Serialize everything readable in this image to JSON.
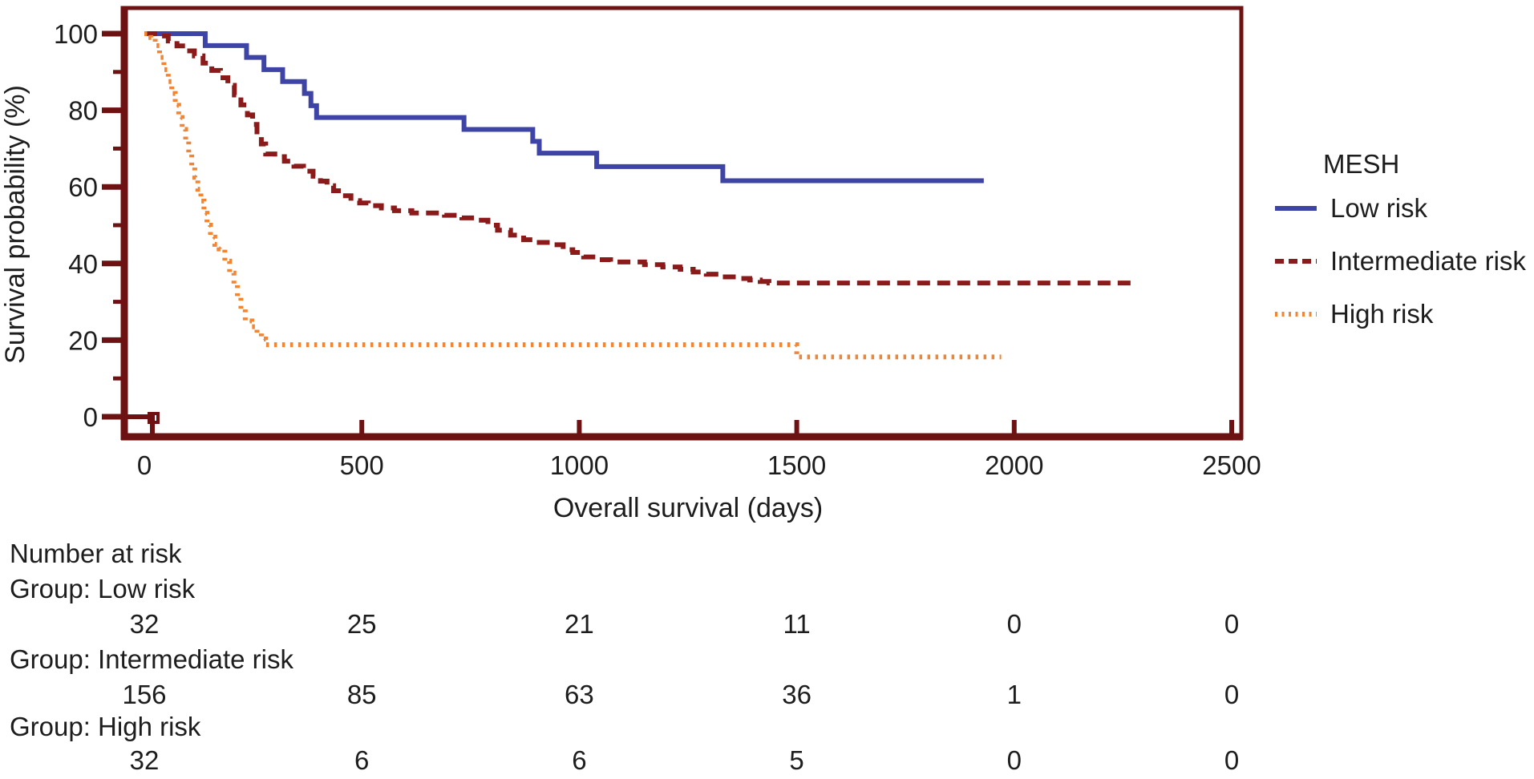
{
  "style": {
    "frame_color": "#6e1112",
    "text_color": "#1d1d1d",
    "background": "#ffffff"
  },
  "chart_data": {
    "type": "line",
    "subtype": "kaplan-meier-step-survival",
    "title": "",
    "xlabel": "Overall survival (days)",
    "ylabel": "Survival probability (%)",
    "xlim": [
      0,
      2500
    ],
    "ylim": [
      0,
      100
    ],
    "x_ticks": [
      0,
      500,
      1000,
      1500,
      2000,
      2500
    ],
    "y_ticks": [
      0,
      20,
      40,
      60,
      80,
      100
    ],
    "y_minor_ticks": [
      10,
      30,
      50,
      70,
      90
    ],
    "grid": false,
    "legend_title": "MESH",
    "legend_position": "right",
    "series": [
      {
        "name": "Low risk",
        "color": "#3e43a6",
        "line_style": "solid",
        "end_day": 1930,
        "points": [
          [
            0,
            100
          ],
          [
            140,
            96.9
          ],
          [
            235,
            93.8
          ],
          [
            275,
            90.6
          ],
          [
            318,
            87.5
          ],
          [
            368,
            84.4
          ],
          [
            383,
            81.2
          ],
          [
            396,
            78.1
          ],
          [
            735,
            75.0
          ],
          [
            893,
            71.9
          ],
          [
            908,
            68.8
          ],
          [
            1040,
            65.3
          ],
          [
            1330,
            61.6
          ]
        ]
      },
      {
        "name": "Intermediate risk",
        "color": "#8b1a1a",
        "line_style": "dashed",
        "end_day": 2280,
        "points": [
          [
            0,
            100
          ],
          [
            30,
            99.4
          ],
          [
            55,
            98.1
          ],
          [
            75,
            96.8
          ],
          [
            95,
            95.5
          ],
          [
            115,
            94.2
          ],
          [
            135,
            92.3
          ],
          [
            155,
            90.4
          ],
          [
            175,
            88.5
          ],
          [
            192,
            86.5
          ],
          [
            207,
            84.0
          ],
          [
            222,
            81.4
          ],
          [
            237,
            78.8
          ],
          [
            249,
            76.3
          ],
          [
            259,
            73.7
          ],
          [
            269,
            71.2
          ],
          [
            279,
            68.6
          ],
          [
            300,
            67.9
          ],
          [
            322,
            66.7
          ],
          [
            344,
            65.4
          ],
          [
            366,
            64.1
          ],
          [
            388,
            62.8
          ],
          [
            405,
            61.5
          ],
          [
            420,
            60.3
          ],
          [
            435,
            59.0
          ],
          [
            455,
            57.7
          ],
          [
            475,
            56.4
          ],
          [
            495,
            55.8
          ],
          [
            515,
            55.1
          ],
          [
            545,
            54.5
          ],
          [
            575,
            53.8
          ],
          [
            615,
            53.2
          ],
          [
            690,
            52.6
          ],
          [
            730,
            51.9
          ],
          [
            762,
            51.3
          ],
          [
            790,
            50.0
          ],
          [
            812,
            48.7
          ],
          [
            842,
            47.4
          ],
          [
            872,
            46.2
          ],
          [
            902,
            45.5
          ],
          [
            940,
            44.9
          ],
          [
            963,
            43.6
          ],
          [
            985,
            42.9
          ],
          [
            1010,
            41.7
          ],
          [
            1040,
            41.0
          ],
          [
            1072,
            40.4
          ],
          [
            1150,
            39.7
          ],
          [
            1192,
            39.1
          ],
          [
            1232,
            38.5
          ],
          [
            1262,
            37.8
          ],
          [
            1292,
            37.2
          ],
          [
            1322,
            36.5
          ],
          [
            1360,
            36.1
          ],
          [
            1392,
            35.7
          ],
          [
            1416,
            35.3
          ],
          [
            1436,
            34.9
          ]
        ]
      },
      {
        "name": "High risk",
        "color": "#f28533",
        "line_style": "dotted",
        "end_day": 1970,
        "points": [
          [
            0,
            100
          ],
          [
            15,
            99.0
          ],
          [
            25,
            96.9
          ],
          [
            35,
            93.8
          ],
          [
            45,
            90.6
          ],
          [
            55,
            87.5
          ],
          [
            63,
            84.4
          ],
          [
            71,
            81.3
          ],
          [
            79,
            78.1
          ],
          [
            87,
            75.0
          ],
          [
            95,
            71.9
          ],
          [
            102,
            68.8
          ],
          [
            109,
            65.6
          ],
          [
            116,
            62.5
          ],
          [
            123,
            59.4
          ],
          [
            130,
            56.3
          ],
          [
            137,
            53.1
          ],
          [
            144,
            50.0
          ],
          [
            152,
            46.9
          ],
          [
            162,
            45.0
          ],
          [
            172,
            43.8
          ],
          [
            185,
            40.6
          ],
          [
            196,
            37.5
          ],
          [
            206,
            34.4
          ],
          [
            214,
            31.3
          ],
          [
            222,
            28.1
          ],
          [
            232,
            25.0
          ],
          [
            247,
            23.5
          ],
          [
            259,
            21.9
          ],
          [
            269,
            20.3
          ],
          [
            279,
            18.8
          ],
          [
            1500,
            15.6
          ]
        ]
      }
    ]
  },
  "risk_table": {
    "title": "Number at risk",
    "columns": [
      0,
      500,
      1000,
      1500,
      2000,
      2500
    ],
    "groups": [
      {
        "label": "Group: Low risk",
        "values": [
          "32",
          "25",
          "21",
          "11",
          "0",
          "0"
        ]
      },
      {
        "label": "Group: Intermediate risk",
        "values": [
          "156",
          "85",
          "63",
          "36",
          "1",
          "0"
        ]
      },
      {
        "label": "Group: High risk",
        "values": [
          "32",
          "6",
          "6",
          "5",
          "0",
          "0"
        ]
      }
    ]
  }
}
